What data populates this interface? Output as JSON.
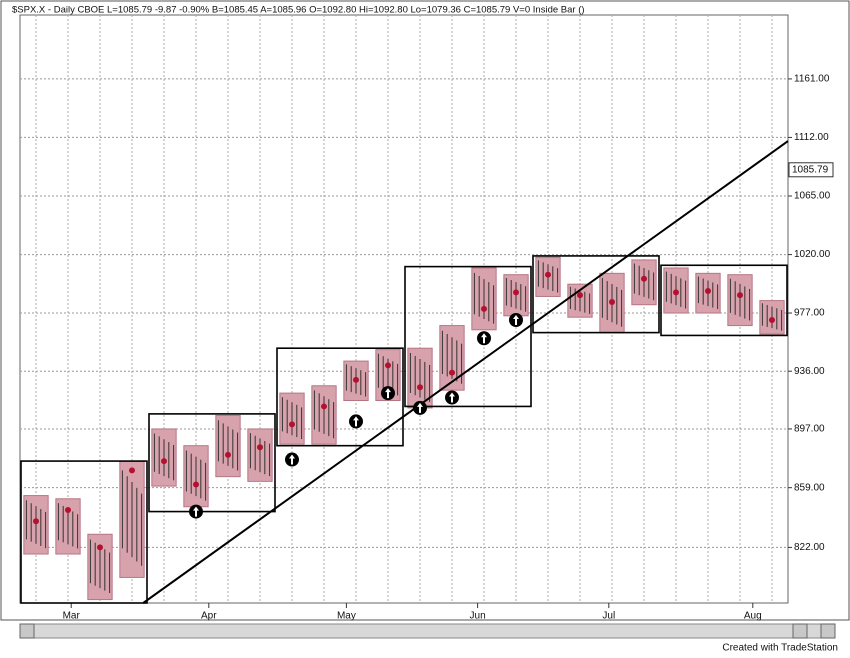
{
  "chart_data": {
    "type": "range-bars",
    "title": "$SPX.X - Daily  CBOE  L=1085.79  -9.87  -0.90%  B=1085.45  A=1085.96  O=1092.80  Hi=1092.80  Lo=1079.36  C=1085.79  V=0  Inside Bar ()",
    "footer": "Created with TradeStation",
    "log_scale": true,
    "grid": true,
    "color": "#d8a2ad",
    "edge_color": "#b77584",
    "close_color": "#b3122e",
    "x": [
      0,
      1,
      2,
      3,
      4,
      5,
      6,
      7,
      8,
      9,
      10,
      11,
      12,
      13,
      14,
      15,
      16,
      17,
      18,
      19,
      20,
      21,
      22,
      23
    ],
    "high": [
      854,
      852,
      830,
      876,
      897,
      886,
      906,
      897,
      921,
      926,
      943,
      951,
      952,
      968,
      1010,
      1005,
      1018,
      998,
      1006,
      1016,
      1010,
      1006,
      1005,
      986
    ],
    "low": [
      818,
      818,
      791,
      804,
      860,
      847,
      866,
      863,
      887,
      887,
      916,
      916,
      911,
      923,
      965,
      975,
      989,
      974,
      963,
      983,
      977,
      977,
      968,
      962
    ],
    "close": [
      838,
      845,
      822,
      870,
      876,
      861,
      880,
      885,
      900,
      912,
      930,
      940,
      925,
      935,
      980,
      992,
      1005,
      990,
      985,
      1002,
      992,
      993,
      990,
      972
    ],
    "xlim": [
      -0.5,
      23.5
    ],
    "xticks": [
      {
        "value": 1.1,
        "label": "Mar"
      },
      {
        "value": 5.4,
        "label": "Apr"
      },
      {
        "value": 9.7,
        "label": "May"
      },
      {
        "value": 13.8,
        "label": "Jun"
      },
      {
        "value": 17.9,
        "label": "Jul"
      },
      {
        "value": 22.4,
        "label": "Aug"
      }
    ],
    "ylim": [
      789,
      1217
    ],
    "yticks": [
      {
        "value": 822,
        "label": "822.00"
      },
      {
        "value": 859,
        "label": "859.00"
      },
      {
        "value": 897,
        "label": "897.00"
      },
      {
        "value": 936,
        "label": "936.00"
      },
      {
        "value": 977,
        "label": "977.00"
      },
      {
        "value": 1020,
        "label": "1020.00"
      },
      {
        "value": 1065,
        "label": "1065.00"
      },
      {
        "value": 1112,
        "label": "1112.00"
      },
      {
        "value": 1161,
        "label": "1161.00"
      }
    ],
    "last_price": {
      "value": 1085.79,
      "label": "1085.79"
    },
    "ranges": [
      {
        "from": 0,
        "to": 3,
        "high": 876,
        "low": 789
      },
      {
        "from": 4,
        "to": 7,
        "high": 907,
        "low": 844
      },
      {
        "from": 8,
        "to": 11,
        "high": 952,
        "low": 886
      },
      {
        "from": 12,
        "to": 15,
        "high": 1011,
        "low": 912
      },
      {
        "from": 16,
        "to": 19,
        "high": 1019,
        "low": 963
      },
      {
        "from": 20,
        "to": 23,
        "high": 1012,
        "low": 961
      }
    ],
    "trendline": {
      "x": [
        3.35,
        23.5
      ],
      "values": [
        789,
        1109
      ]
    },
    "markers": {
      "x": [
        5,
        8,
        10,
        11,
        12,
        13,
        14,
        15
      ],
      "values": [
        844,
        877,
        902,
        921,
        911,
        918,
        959,
        972
      ]
    }
  }
}
